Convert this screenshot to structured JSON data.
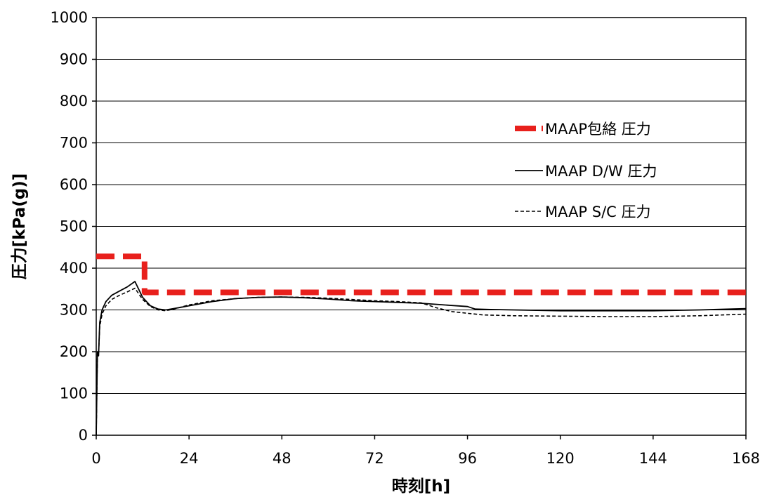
{
  "chart_data": {
    "type": "line",
    "xlabel": "時刻[h]",
    "ylabel": "圧力[kPa(g)]",
    "xlim": [
      0,
      168
    ],
    "ylim": [
      0,
      1000
    ],
    "xticks": [
      0,
      24,
      48,
      72,
      96,
      120,
      144,
      168
    ],
    "yticks": [
      0,
      100,
      200,
      300,
      400,
      500,
      600,
      700,
      800,
      900,
      1000
    ],
    "grid": "horizontal",
    "legend_position": "right",
    "series": [
      {
        "name": "MAAP包絡 圧力",
        "style": "thick-dashed",
        "color": "#e8201c",
        "x": [
          0,
          12.5,
          12.5,
          168
        ],
        "y": [
          428,
          428,
          342,
          342
        ]
      },
      {
        "name": "MAAP D/W 圧力",
        "style": "solid",
        "color": "#000000",
        "x": [
          0,
          0.3,
          0.6,
          0.9,
          1.5,
          2.5,
          4,
          6,
          8,
          10,
          12,
          14,
          16,
          18,
          20,
          24,
          30,
          36,
          42,
          48,
          54,
          60,
          66,
          72,
          78,
          84,
          90,
          96,
          98,
          102,
          108,
          114,
          120,
          132,
          144,
          156,
          168
        ],
        "y": [
          0,
          200,
          190,
          270,
          300,
          320,
          335,
          345,
          355,
          368,
          330,
          310,
          302,
          300,
          303,
          310,
          320,
          327,
          330,
          331,
          329,
          326,
          322,
          320,
          318,
          316,
          312,
          308,
          302,
          301,
          300,
          299,
          298,
          298,
          298,
          300,
          303
        ]
      },
      {
        "name": "MAAP S/C 圧力",
        "style": "dashed",
        "color": "#000000",
        "x": [
          0,
          0.3,
          0.6,
          0.9,
          1.5,
          2.5,
          4,
          6,
          8,
          10,
          12,
          14,
          16,
          18,
          20,
          24,
          30,
          36,
          42,
          48,
          54,
          60,
          66,
          72,
          78,
          84,
          88,
          92,
          96,
          100,
          108,
          120,
          132,
          144,
          156,
          168
        ],
        "y": [
          0,
          195,
          195,
          260,
          290,
          310,
          325,
          335,
          343,
          352,
          325,
          308,
          300,
          298,
          302,
          312,
          322,
          327,
          330,
          331,
          330,
          328,
          325,
          322,
          320,
          317,
          305,
          296,
          292,
          288,
          286,
          285,
          284,
          284,
          286,
          290
        ]
      }
    ]
  }
}
